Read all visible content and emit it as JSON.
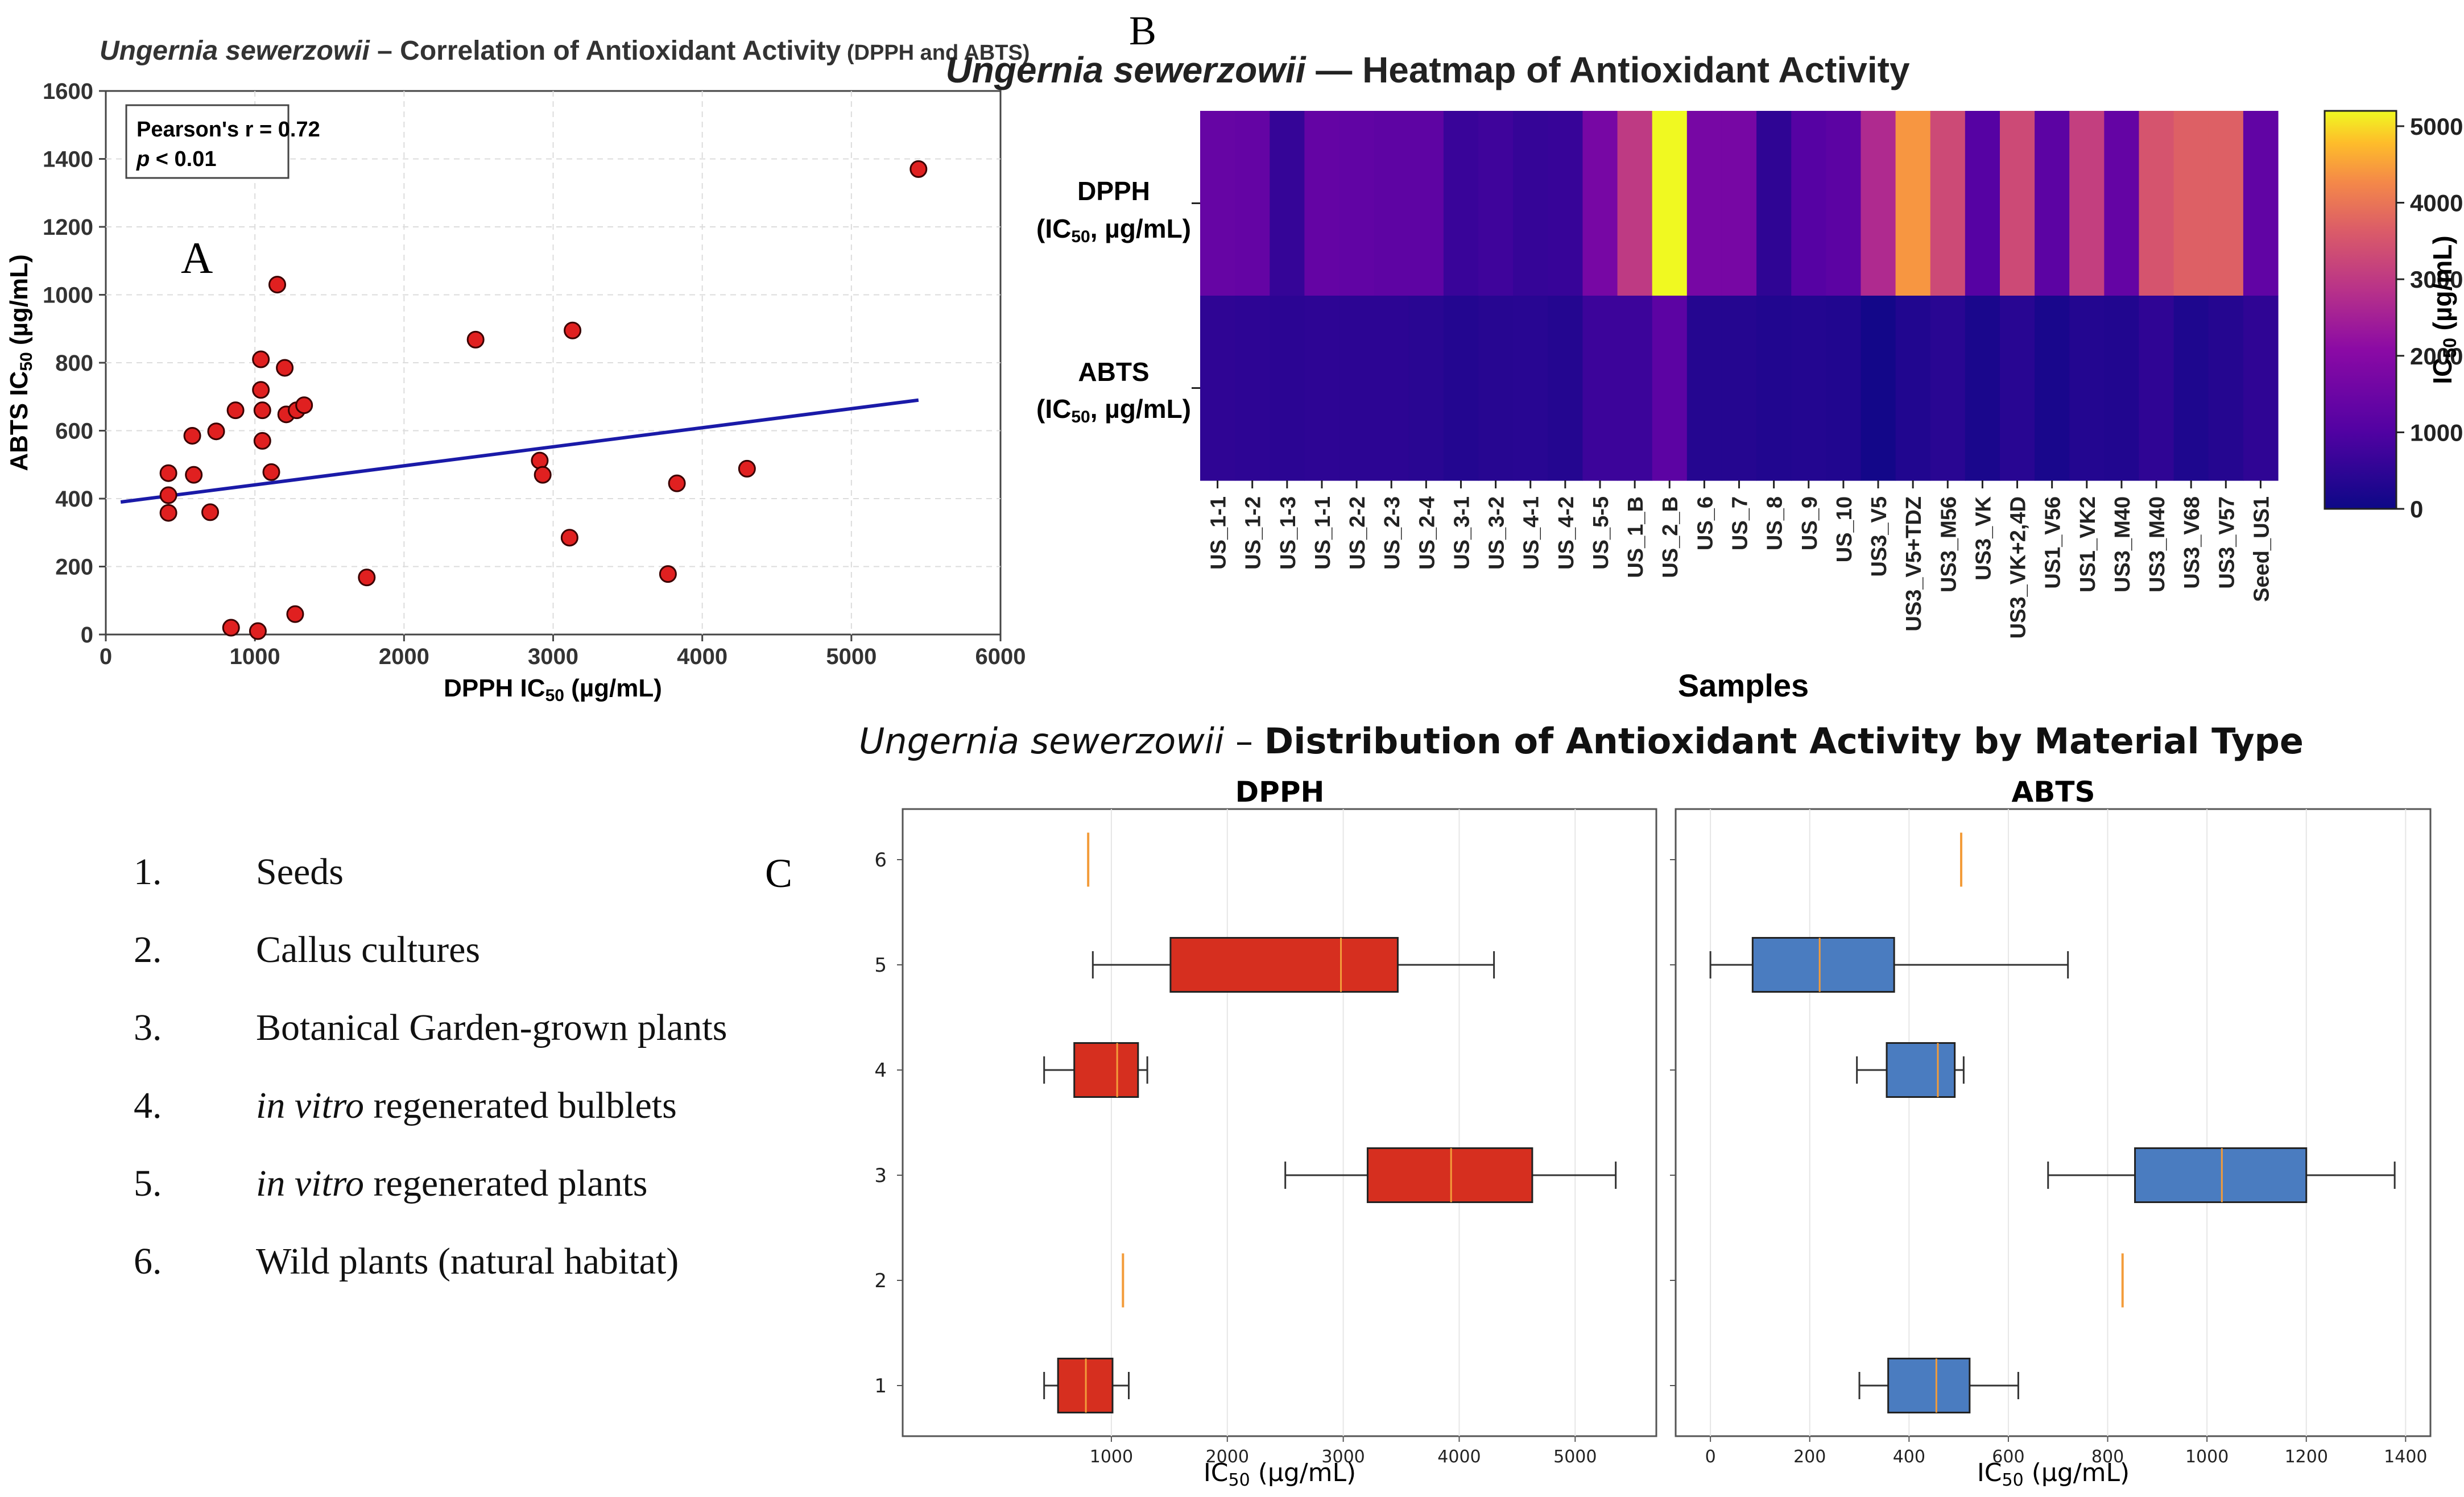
{
  "panel_labels": {
    "a": "A",
    "b": "B",
    "c": "C"
  },
  "material_legend": [
    {
      "num": "1.",
      "italic": "",
      "text": "Seeds"
    },
    {
      "num": "2.",
      "italic": "",
      "text": "Callus cultures"
    },
    {
      "num": "3.",
      "italic": "",
      "text": "Botanical Garden-grown plants"
    },
    {
      "num": "4.",
      "italic": "in vitro",
      "text": " regenerated bulblets"
    },
    {
      "num": "5.",
      "italic": "in vitro",
      "text": " regenerated plants"
    },
    {
      "num": "6.",
      "italic": "",
      "text": "Wild plants (natural habitat)"
    }
  ],
  "chart_data": [
    {
      "id": "A",
      "type": "scatter",
      "title_italic": "Ungernia sewerzowii",
      "title_main": " – Correlation of Antioxidant Activity",
      "title_small": " (DPPH and ABTS)",
      "xlabel_pre": "DPPH IC",
      "xlabel_sub": "50",
      "xlabel_post": " (µg/mL)",
      "ylabel_pre": "ABTS IC",
      "ylabel_sub": "50",
      "ylabel_post": " (µg/mL)",
      "xlim": [
        0,
        6000
      ],
      "ylim": [
        0,
        1600
      ],
      "xticks": [
        0,
        1000,
        2000,
        3000,
        4000,
        5000,
        6000
      ],
      "yticks": [
        0,
        200,
        400,
        600,
        800,
        1000,
        1200,
        1400,
        1600
      ],
      "grid": true,
      "annotation": {
        "line1": "Pearson's r = 0.72",
        "line2_italic": "p",
        "line2_rest": " < 0.01"
      },
      "colors": {
        "points": "#e02020",
        "point_edge": "#3a0000",
        "trend": "#1a1aa8"
      },
      "points": [
        [
          420,
          475
        ],
        [
          420,
          410
        ],
        [
          420,
          358
        ],
        [
          580,
          585
        ],
        [
          590,
          470
        ],
        [
          700,
          360
        ],
        [
          740,
          598
        ],
        [
          840,
          20
        ],
        [
          870,
          660
        ],
        [
          1020,
          10
        ],
        [
          1040,
          810
        ],
        [
          1040,
          720
        ],
        [
          1050,
          660
        ],
        [
          1050,
          570
        ],
        [
          1110,
          478
        ],
        [
          1150,
          1030
        ],
        [
          1200,
          785
        ],
        [
          1210,
          648
        ],
        [
          1270,
          60
        ],
        [
          1280,
          660
        ],
        [
          1330,
          675
        ],
        [
          1750,
          168
        ],
        [
          2480,
          868
        ],
        [
          2910,
          512
        ],
        [
          2930,
          470
        ],
        [
          3110,
          285
        ],
        [
          3130,
          895
        ],
        [
          3770,
          178
        ],
        [
          3830,
          445
        ],
        [
          4300,
          488
        ],
        [
          5450,
          1370
        ]
      ],
      "trendline": {
        "x": [
          100,
          5450
        ],
        "y": [
          390,
          690
        ]
      }
    },
    {
      "id": "B",
      "type": "heatmap",
      "title_italic": "Ungernia sewerzowii",
      "title_main": " — Heatmap of Antioxidant Activity",
      "xlabel": "Samples",
      "rows": [
        {
          "l1": "DPPH",
          "l2_pre": "(IC",
          "l2_sub": "50",
          "l2_post": ", µg/mL)"
        },
        {
          "l1": "ABTS",
          "l2_pre": "(IC",
          "l2_sub": "50",
          "l2_post": ", µg/mL)"
        }
      ],
      "samples": [
        "US_1-1",
        "US_1-2",
        "US_1-3",
        "US_1-1",
        "US_2-2",
        "US_2-3",
        "US_2-4",
        "US_3-1",
        "US_3-2",
        "US_4-1",
        "US_4-2",
        "US_5-5",
        "US_1_B",
        "US_2_B",
        "US_6",
        "US_7",
        "US_8",
        "US_9",
        "US_10",
        "US3_V5",
        "US3_V5+TDZ",
        "US3_M56",
        "US3_VK",
        "US3_VK+2,4D",
        "US1_V56",
        "US1_VK2",
        "US3_M40",
        "US3_M40",
        "US3_V68",
        "US3_V57",
        "Seed_US1"
      ],
      "values": [
        [
          1400,
          1350,
          600,
          1350,
          1300,
          1250,
          1250,
          650,
          750,
          600,
          620,
          1700,
          3000,
          5200,
          1700,
          1700,
          500,
          1100,
          1200,
          2700,
          4400,
          3300,
          1100,
          3300,
          1200,
          3100,
          1350,
          3500,
          3700,
          3700,
          1300
        ],
        [
          500,
          480,
          440,
          470,
          460,
          460,
          420,
          330,
          380,
          400,
          340,
          700,
          700,
          1200,
          350,
          350,
          300,
          330,
          300,
          90,
          300,
          420,
          200,
          400,
          180,
          320,
          300,
          500,
          250,
          350,
          500
        ]
      ],
      "colorbar": {
        "label_pre": "IC",
        "label_sub": "50",
        "label_post": " (µg/mL)",
        "min": 0,
        "max": 5200,
        "ticks": [
          0,
          1000,
          2000,
          3000,
          4000,
          5000
        ]
      }
    },
    {
      "id": "C",
      "type": "box",
      "title_italic": "Ungernia sewerzowii",
      "title_dash": " – ",
      "title_main": "Distribution of Antioxidant Activity by Material Type",
      "categories": [
        "1",
        "2",
        "3",
        "4",
        "5",
        "6"
      ],
      "xlabel_pre": "IC",
      "xlabel_sub": "50",
      "xlabel_post": " (µg/mL)",
      "panels": [
        {
          "name": "DPPH",
          "color": "#d62f1f",
          "xlim": [
            -800,
            5700
          ],
          "xticks": [
            1000,
            2000,
            3000,
            4000,
            5000
          ],
          "boxes": [
            {
              "cat": "1",
              "min": 420,
              "q1": 540,
              "median": 780,
              "q3": 1010,
              "max": 1150
            },
            {
              "cat": "2",
              "median": 1100
            },
            {
              "cat": "3",
              "min": 2500,
              "q1": 3210,
              "median": 3930,
              "q3": 4630,
              "max": 5350
            },
            {
              "cat": "4",
              "min": 420,
              "q1": 680,
              "median": 1050,
              "q3": 1230,
              "max": 1310
            },
            {
              "cat": "5",
              "min": 840,
              "q1": 1510,
              "median": 2980,
              "q3": 3470,
              "max": 4300
            },
            {
              "cat": "6",
              "median": 800
            }
          ]
        },
        {
          "name": "ABTS",
          "color": "#4a7cc0",
          "xlim": [
            -70,
            1450
          ],
          "xticks": [
            0,
            200,
            400,
            600,
            800,
            1000,
            1200,
            1400
          ],
          "boxes": [
            {
              "cat": "1",
              "min": 300,
              "q1": 358,
              "median": 455,
              "q3": 522,
              "max": 620
            },
            {
              "cat": "2",
              "median": 830
            },
            {
              "cat": "3",
              "min": 680,
              "q1": 855,
              "median": 1030,
              "q3": 1200,
              "max": 1378
            },
            {
              "cat": "4",
              "min": 295,
              "q1": 355,
              "median": 458,
              "q3": 492,
              "max": 510
            },
            {
              "cat": "5",
              "min": 0,
              "q1": 85,
              "median": 220,
              "q3": 370,
              "max": 720
            },
            {
              "cat": "6",
              "median": 505
            }
          ]
        }
      ]
    }
  ]
}
